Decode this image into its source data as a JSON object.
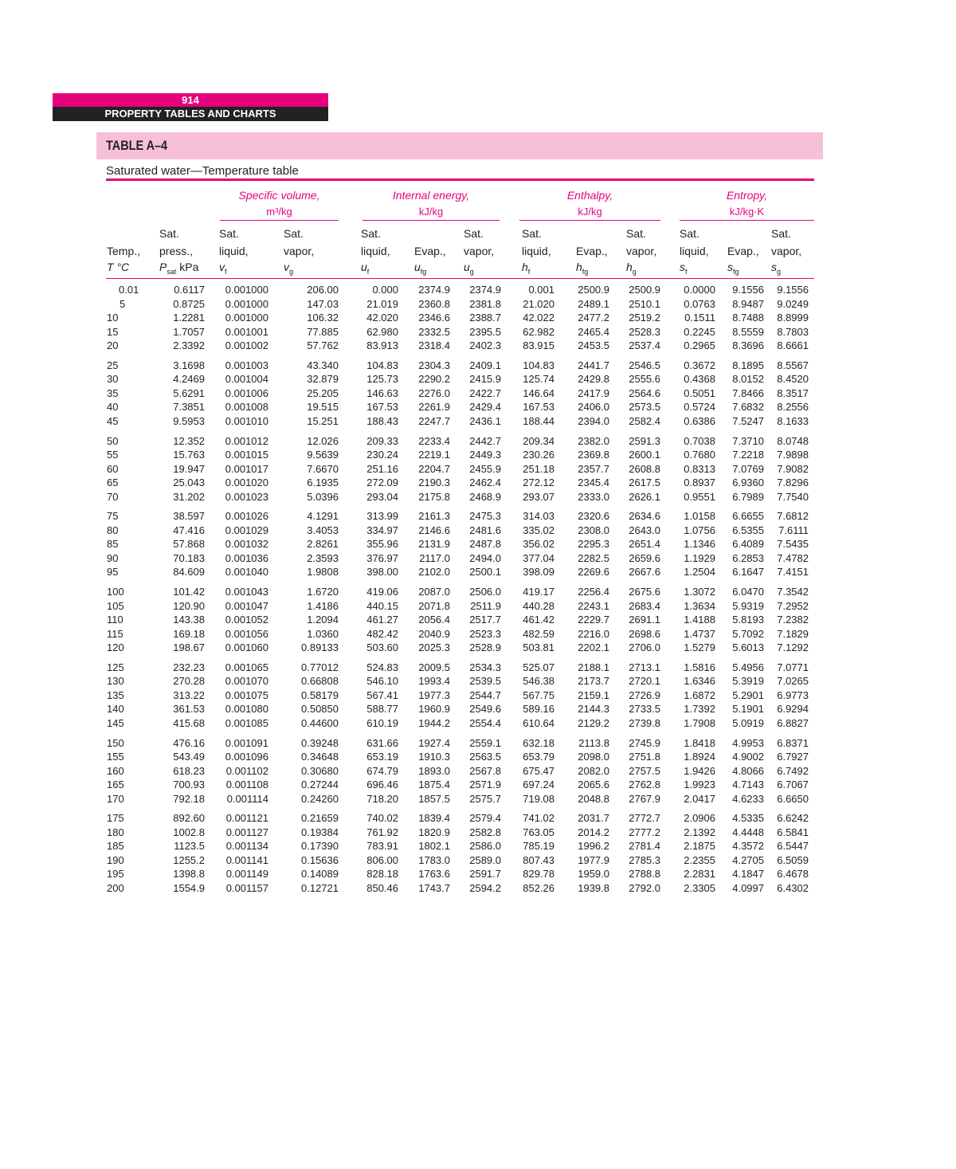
{
  "page": {
    "number": "914",
    "section": "PROPERTY TABLES AND CHARTS"
  },
  "table": {
    "id": "TABLE A–4",
    "caption": "Saturated water—Temperature table",
    "groups": [
      {
        "label": "Specific volume,",
        "unit": "m³/kg"
      },
      {
        "label": "Internal energy,",
        "unit": "kJ/kg"
      },
      {
        "label": "Enthalpy,",
        "unit": "kJ/kg"
      },
      {
        "label": "Entropy,",
        "unit": "kJ/kg·K"
      }
    ],
    "columns": [
      {
        "l1": "",
        "l2": "Temp.,",
        "sym": "T °C",
        "sub": ""
      },
      {
        "l1": "Sat.",
        "l2": "press.,",
        "sym": "P",
        "sub": "sat",
        "after": " kPa"
      },
      {
        "l1": "Sat.",
        "l2": "liquid,",
        "sym": "v",
        "sub": "f"
      },
      {
        "l1": "Sat.",
        "l2": "vapor,",
        "sym": "v",
        "sub": "g"
      },
      {
        "l1": "Sat.",
        "l2": "liquid,",
        "sym": "u",
        "sub": "f"
      },
      {
        "l1": "",
        "l2": "Evap.,",
        "sym": "u",
        "sub": "fg"
      },
      {
        "l1": "Sat.",
        "l2": "vapor,",
        "sym": "u",
        "sub": "g"
      },
      {
        "l1": "Sat.",
        "l2": "liquid,",
        "sym": "h",
        "sub": "f"
      },
      {
        "l1": "",
        "l2": "Evap.,",
        "sym": "h",
        "sub": "fg"
      },
      {
        "l1": "Sat.",
        "l2": "vapor,",
        "sym": "h",
        "sub": "g"
      },
      {
        "l1": "Sat.",
        "l2": "liquid,",
        "sym": "s",
        "sub": "f"
      },
      {
        "l1": "",
        "l2": "Evap.,",
        "sym": "s",
        "sub": "fg"
      },
      {
        "l1": "Sat.",
        "l2": "vapor,",
        "sym": "s",
        "sub": "g"
      }
    ],
    "rows": [
      [
        "0.01",
        "0.6117",
        "0.001000",
        "206.00",
        "0.000",
        "2374.9",
        "2374.9",
        "0.001",
        "2500.9",
        "2500.9",
        "0.0000",
        "9.1556",
        "9.1556"
      ],
      [
        "5",
        "0.8725",
        "0.001000",
        "147.03",
        "21.019",
        "2360.8",
        "2381.8",
        "21.020",
        "2489.1",
        "2510.1",
        "0.0763",
        "8.9487",
        "9.0249"
      ],
      [
        "10",
        "1.2281",
        "0.001000",
        "106.32",
        "42.020",
        "2346.6",
        "2388.7",
        "42.022",
        "2477.2",
        "2519.2",
        "0.1511",
        "8.7488",
        "8.8999"
      ],
      [
        "15",
        "1.7057",
        "0.001001",
        "77.885",
        "62.980",
        "2332.5",
        "2395.5",
        "62.982",
        "2465.4",
        "2528.3",
        "0.2245",
        "8.5559",
        "8.7803"
      ],
      [
        "20",
        "2.3392",
        "0.001002",
        "57.762",
        "83.913",
        "2318.4",
        "2402.3",
        "83.915",
        "2453.5",
        "2537.4",
        "0.2965",
        "8.3696",
        "8.6661"
      ],
      [
        "25",
        "3.1698",
        "0.001003",
        "43.340",
        "104.83",
        "2304.3",
        "2409.1",
        "104.83",
        "2441.7",
        "2546.5",
        "0.3672",
        "8.1895",
        "8.5567"
      ],
      [
        "30",
        "4.2469",
        "0.001004",
        "32.879",
        "125.73",
        "2290.2",
        "2415.9",
        "125.74",
        "2429.8",
        "2555.6",
        "0.4368",
        "8.0152",
        "8.4520"
      ],
      [
        "35",
        "5.6291",
        "0.001006",
        "25.205",
        "146.63",
        "2276.0",
        "2422.7",
        "146.64",
        "2417.9",
        "2564.6",
        "0.5051",
        "7.8466",
        "8.3517"
      ],
      [
        "40",
        "7.3851",
        "0.001008",
        "19.515",
        "167.53",
        "2261.9",
        "2429.4",
        "167.53",
        "2406.0",
        "2573.5",
        "0.5724",
        "7.6832",
        "8.2556"
      ],
      [
        "45",
        "9.5953",
        "0.001010",
        "15.251",
        "188.43",
        "2247.7",
        "2436.1",
        "188.44",
        "2394.0",
        "2582.4",
        "0.6386",
        "7.5247",
        "8.1633"
      ],
      [
        "50",
        "12.352",
        "0.001012",
        "12.026",
        "209.33",
        "2233.4",
        "2442.7",
        "209.34",
        "2382.0",
        "2591.3",
        "0.7038",
        "7.3710",
        "8.0748"
      ],
      [
        "55",
        "15.763",
        "0.001015",
        "9.5639",
        "230.24",
        "2219.1",
        "2449.3",
        "230.26",
        "2369.8",
        "2600.1",
        "0.7680",
        "7.2218",
        "7.9898"
      ],
      [
        "60",
        "19.947",
        "0.001017",
        "7.6670",
        "251.16",
        "2204.7",
        "2455.9",
        "251.18",
        "2357.7",
        "2608.8",
        "0.8313",
        "7.0769",
        "7.9082"
      ],
      [
        "65",
        "25.043",
        "0.001020",
        "6.1935",
        "272.09",
        "2190.3",
        "2462.4",
        "272.12",
        "2345.4",
        "2617.5",
        "0.8937",
        "6.9360",
        "7.8296"
      ],
      [
        "70",
        "31.202",
        "0.001023",
        "5.0396",
        "293.04",
        "2175.8",
        "2468.9",
        "293.07",
        "2333.0",
        "2626.1",
        "0.9551",
        "6.7989",
        "7.7540"
      ],
      [
        "75",
        "38.597",
        "0.001026",
        "4.1291",
        "313.99",
        "2161.3",
        "2475.3",
        "314.03",
        "2320.6",
        "2634.6",
        "1.0158",
        "6.6655",
        "7.6812"
      ],
      [
        "80",
        "47.416",
        "0.001029",
        "3.4053",
        "334.97",
        "2146.6",
        "2481.6",
        "335.02",
        "2308.0",
        "2643.0",
        "1.0756",
        "6.5355",
        "7.6111"
      ],
      [
        "85",
        "57.868",
        "0.001032",
        "2.8261",
        "355.96",
        "2131.9",
        "2487.8",
        "356.02",
        "2295.3",
        "2651.4",
        "1.1346",
        "6.4089",
        "7.5435"
      ],
      [
        "90",
        "70.183",
        "0.001036",
        "2.3593",
        "376.97",
        "2117.0",
        "2494.0",
        "377.04",
        "2282.5",
        "2659.6",
        "1.1929",
        "6.2853",
        "7.4782"
      ],
      [
        "95",
        "84.609",
        "0.001040",
        "1.9808",
        "398.00",
        "2102.0",
        "2500.1",
        "398.09",
        "2269.6",
        "2667.6",
        "1.2504",
        "6.1647",
        "7.4151"
      ],
      [
        "100",
        "101.42",
        "0.001043",
        "1.6720",
        "419.06",
        "2087.0",
        "2506.0",
        "419.17",
        "2256.4",
        "2675.6",
        "1.3072",
        "6.0470",
        "7.3542"
      ],
      [
        "105",
        "120.90",
        "0.001047",
        "1.4186",
        "440.15",
        "2071.8",
        "2511.9",
        "440.28",
        "2243.1",
        "2683.4",
        "1.3634",
        "5.9319",
        "7.2952"
      ],
      [
        "110",
        "143.38",
        "0.001052",
        "1.2094",
        "461.27",
        "2056.4",
        "2517.7",
        "461.42",
        "2229.7",
        "2691.1",
        "1.4188",
        "5.8193",
        "7.2382"
      ],
      [
        "115",
        "169.18",
        "0.001056",
        "1.0360",
        "482.42",
        "2040.9",
        "2523.3",
        "482.59",
        "2216.0",
        "2698.6",
        "1.4737",
        "5.7092",
        "7.1829"
      ],
      [
        "120",
        "198.67",
        "0.001060",
        "0.89133",
        "503.60",
        "2025.3",
        "2528.9",
        "503.81",
        "2202.1",
        "2706.0",
        "1.5279",
        "5.6013",
        "7.1292"
      ],
      [
        "125",
        "232.23",
        "0.001065",
        "0.77012",
        "524.83",
        "2009.5",
        "2534.3",
        "525.07",
        "2188.1",
        "2713.1",
        "1.5816",
        "5.4956",
        "7.0771"
      ],
      [
        "130",
        "270.28",
        "0.001070",
        "0.66808",
        "546.10",
        "1993.4",
        "2539.5",
        "546.38",
        "2173.7",
        "2720.1",
        "1.6346",
        "5.3919",
        "7.0265"
      ],
      [
        "135",
        "313.22",
        "0.001075",
        "0.58179",
        "567.41",
        "1977.3",
        "2544.7",
        "567.75",
        "2159.1",
        "2726.9",
        "1.6872",
        "5.2901",
        "6.9773"
      ],
      [
        "140",
        "361.53",
        "0.001080",
        "0.50850",
        "588.77",
        "1960.9",
        "2549.6",
        "589.16",
        "2144.3",
        "2733.5",
        "1.7392",
        "5.1901",
        "6.9294"
      ],
      [
        "145",
        "415.68",
        "0.001085",
        "0.44600",
        "610.19",
        "1944.2",
        "2554.4",
        "610.64",
        "2129.2",
        "2739.8",
        "1.7908",
        "5.0919",
        "6.8827"
      ],
      [
        "150",
        "476.16",
        "0.001091",
        "0.39248",
        "631.66",
        "1927.4",
        "2559.1",
        "632.18",
        "2113.8",
        "2745.9",
        "1.8418",
        "4.9953",
        "6.8371"
      ],
      [
        "155",
        "543.49",
        "0.001096",
        "0.34648",
        "653.19",
        "1910.3",
        "2563.5",
        "653.79",
        "2098.0",
        "2751.8",
        "1.8924",
        "4.9002",
        "6.7927"
      ],
      [
        "160",
        "618.23",
        "0.001102",
        "0.30680",
        "674.79",
        "1893.0",
        "2567.8",
        "675.47",
        "2082.0",
        "2757.5",
        "1.9426",
        "4.8066",
        "6.7492"
      ],
      [
        "165",
        "700.93",
        "0.001108",
        "0.27244",
        "696.46",
        "1875.4",
        "2571.9",
        "697.24",
        "2065.6",
        "2762.8",
        "1.9923",
        "4.7143",
        "6.7067"
      ],
      [
        "170",
        "792.18",
        "0.001114",
        "0.24260",
        "718.20",
        "1857.5",
        "2575.7",
        "719.08",
        "2048.8",
        "2767.9",
        "2.0417",
        "4.6233",
        "6.6650"
      ],
      [
        "175",
        "892.60",
        "0.001121",
        "0.21659",
        "740.02",
        "1839.4",
        "2579.4",
        "741.02",
        "2031.7",
        "2772.7",
        "2.0906",
        "4.5335",
        "6.6242"
      ],
      [
        "180",
        "1002.8",
        "0.001127",
        "0.19384",
        "761.92",
        "1820.9",
        "2582.8",
        "763.05",
        "2014.2",
        "2777.2",
        "2.1392",
        "4.4448",
        "6.5841"
      ],
      [
        "185",
        "1123.5",
        "0.001134",
        "0.17390",
        "783.91",
        "1802.1",
        "2586.0",
        "785.19",
        "1996.2",
        "2781.4",
        "2.1875",
        "4.3572",
        "6.5447"
      ],
      [
        "190",
        "1255.2",
        "0.001141",
        "0.15636",
        "806.00",
        "1783.0",
        "2589.0",
        "807.43",
        "1977.9",
        "2785.3",
        "2.2355",
        "4.2705",
        "6.5059"
      ],
      [
        "195",
        "1398.8",
        "0.001149",
        "0.14089",
        "828.18",
        "1763.6",
        "2591.7",
        "829.78",
        "1959.0",
        "2788.8",
        "2.2831",
        "4.1847",
        "6.4678"
      ],
      [
        "200",
        "1554.9",
        "0.001157",
        "0.12721",
        "850.46",
        "1743.7",
        "2594.2",
        "852.26",
        "1939.8",
        "2792.0",
        "2.3305",
        "4.0997",
        "6.4302"
      ]
    ]
  },
  "colors": {
    "accent": "#e6007e",
    "band": "#f7bfd8",
    "dark": "#222222"
  }
}
